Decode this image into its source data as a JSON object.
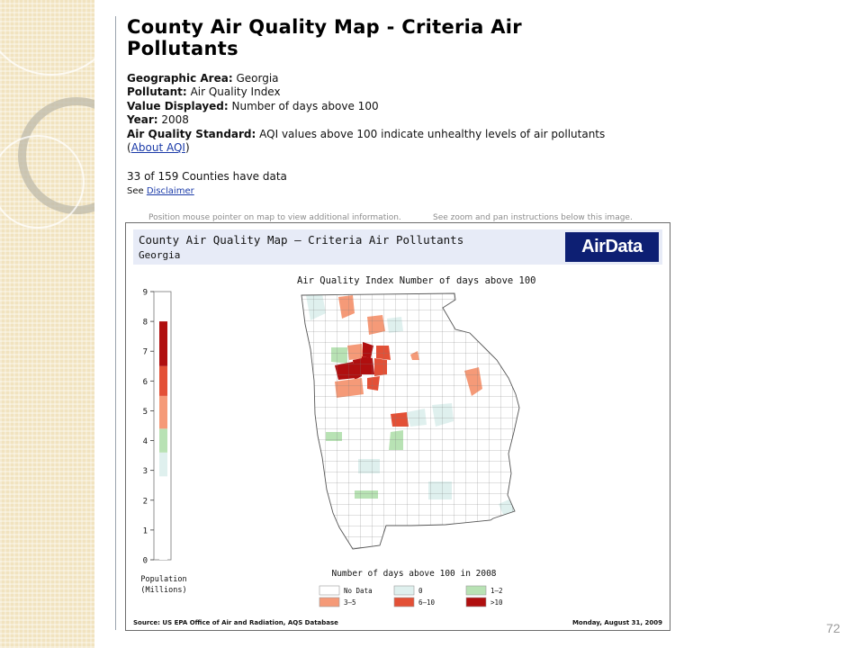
{
  "page": {
    "title": "County Air Quality Map - Criteria Air Pollutants",
    "page_number": "72"
  },
  "meta": {
    "geo_label": "Geographic Area:",
    "geo_value": "Georgia",
    "pollutant_label": "Pollutant:",
    "pollutant_value": "Air Quality Index",
    "value_label": "Value Displayed:",
    "value_value": "Number of days above 100",
    "year_label": "Year:",
    "year_value": "2008",
    "standard_label": "Air Quality Standard:",
    "standard_value": "AQI values above 100 indicate unhealthy levels of air pollutants",
    "about_open": "(",
    "about_link": "About AQI",
    "about_close": ")",
    "counties_text": "33 of 159 Counties have data",
    "see_text": "See",
    "disclaimer_link": "Disclaimer"
  },
  "hints": {
    "hover": "Position mouse pointer on map to view additional information.",
    "zoom": "See zoom and pan instructions below this image."
  },
  "map": {
    "banner_title": "County Air Quality Map — Criteria Air Pollutants",
    "banner_subtitle": "Georgia",
    "logo": "AirData",
    "map_title": "Air Quality Index Number of days above 100",
    "population_label_1": "Population",
    "population_label_2": "(Millions)",
    "legend_title": "Number of days above 100 in 2008",
    "legend": [
      {
        "label": "No Data",
        "color": "#ffffff"
      },
      {
        "label": "0",
        "color": "#dff0ee"
      },
      {
        "label": "1—2",
        "color": "#b8e2b4"
      },
      {
        "label": "3—5",
        "color": "#f59a78"
      },
      {
        "label": "6—10",
        "color": "#e35036"
      },
      {
        "label": ">10",
        "color": "#b00f0f"
      }
    ],
    "source": "Source: US EPA Office of Air and Radiation, AQS Database",
    "date": "Monday, August 31, 2009"
  },
  "chart_data": {
    "type": "bar",
    "title": "",
    "ylabel": "Population (Millions)",
    "ylim": [
      0,
      9
    ],
    "y_ticks": [
      "0",
      "1",
      "2",
      "3",
      "4",
      "5",
      "6",
      "7",
      "8",
      "9"
    ],
    "segments": [
      {
        "category": "No Data",
        "from": 0,
        "to": 2.8,
        "color": "#ffffff"
      },
      {
        "category": "0",
        "from": 2.8,
        "to": 3.6,
        "color": "#dff0ee"
      },
      {
        "category": "1—2",
        "from": 3.6,
        "to": 4.4,
        "color": "#b8e2b4"
      },
      {
        "category": "3—5",
        "from": 4.4,
        "to": 5.5,
        "color": "#f59a78"
      },
      {
        "category": "6—10",
        "from": 5.5,
        "to": 6.5,
        "color": "#e35036"
      },
      {
        "category": ">10",
        "from": 6.5,
        "to": 8.0,
        "color": "#b00f0f"
      }
    ]
  }
}
